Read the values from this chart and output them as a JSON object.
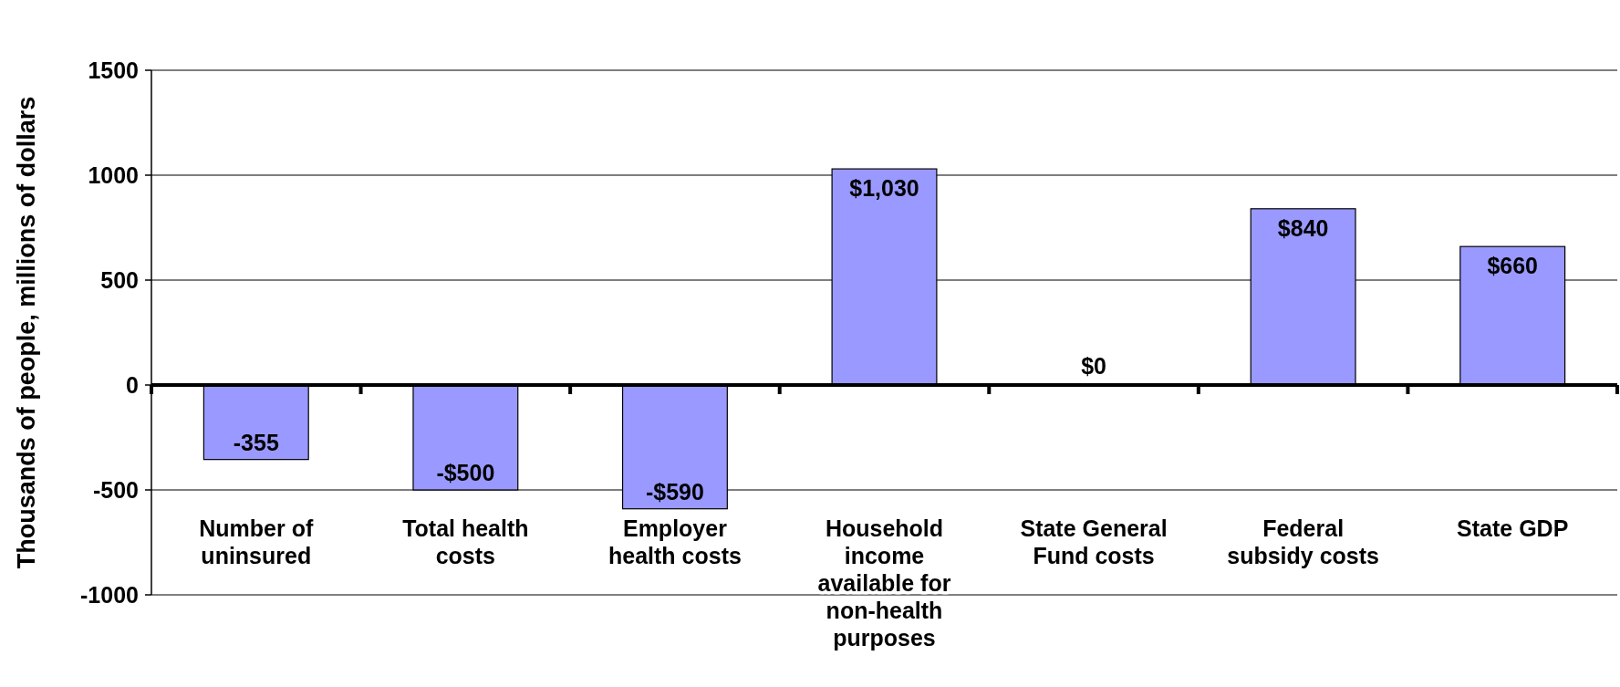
{
  "chart_data": {
    "type": "bar",
    "ylabel": "Thousands of people, millions of dollars",
    "categories": [
      "Number of uninsured",
      "Total health costs",
      "Employer health costs",
      "Household income available for non-health purposes",
      "State General Fund costs",
      "Federal subsidy costs",
      "State GDP"
    ],
    "values": [
      -355,
      -500,
      -590,
      1030,
      0,
      840,
      660
    ],
    "value_labels": [
      "-355",
      "-$500",
      "-$590",
      "$1,030",
      "$0",
      "$840",
      "$660"
    ],
    "color": "#9999ff",
    "ylim": [
      -1000,
      1500
    ],
    "yticks": [
      -1000,
      -500,
      0,
      500,
      1000,
      1500
    ],
    "grid": "y"
  }
}
